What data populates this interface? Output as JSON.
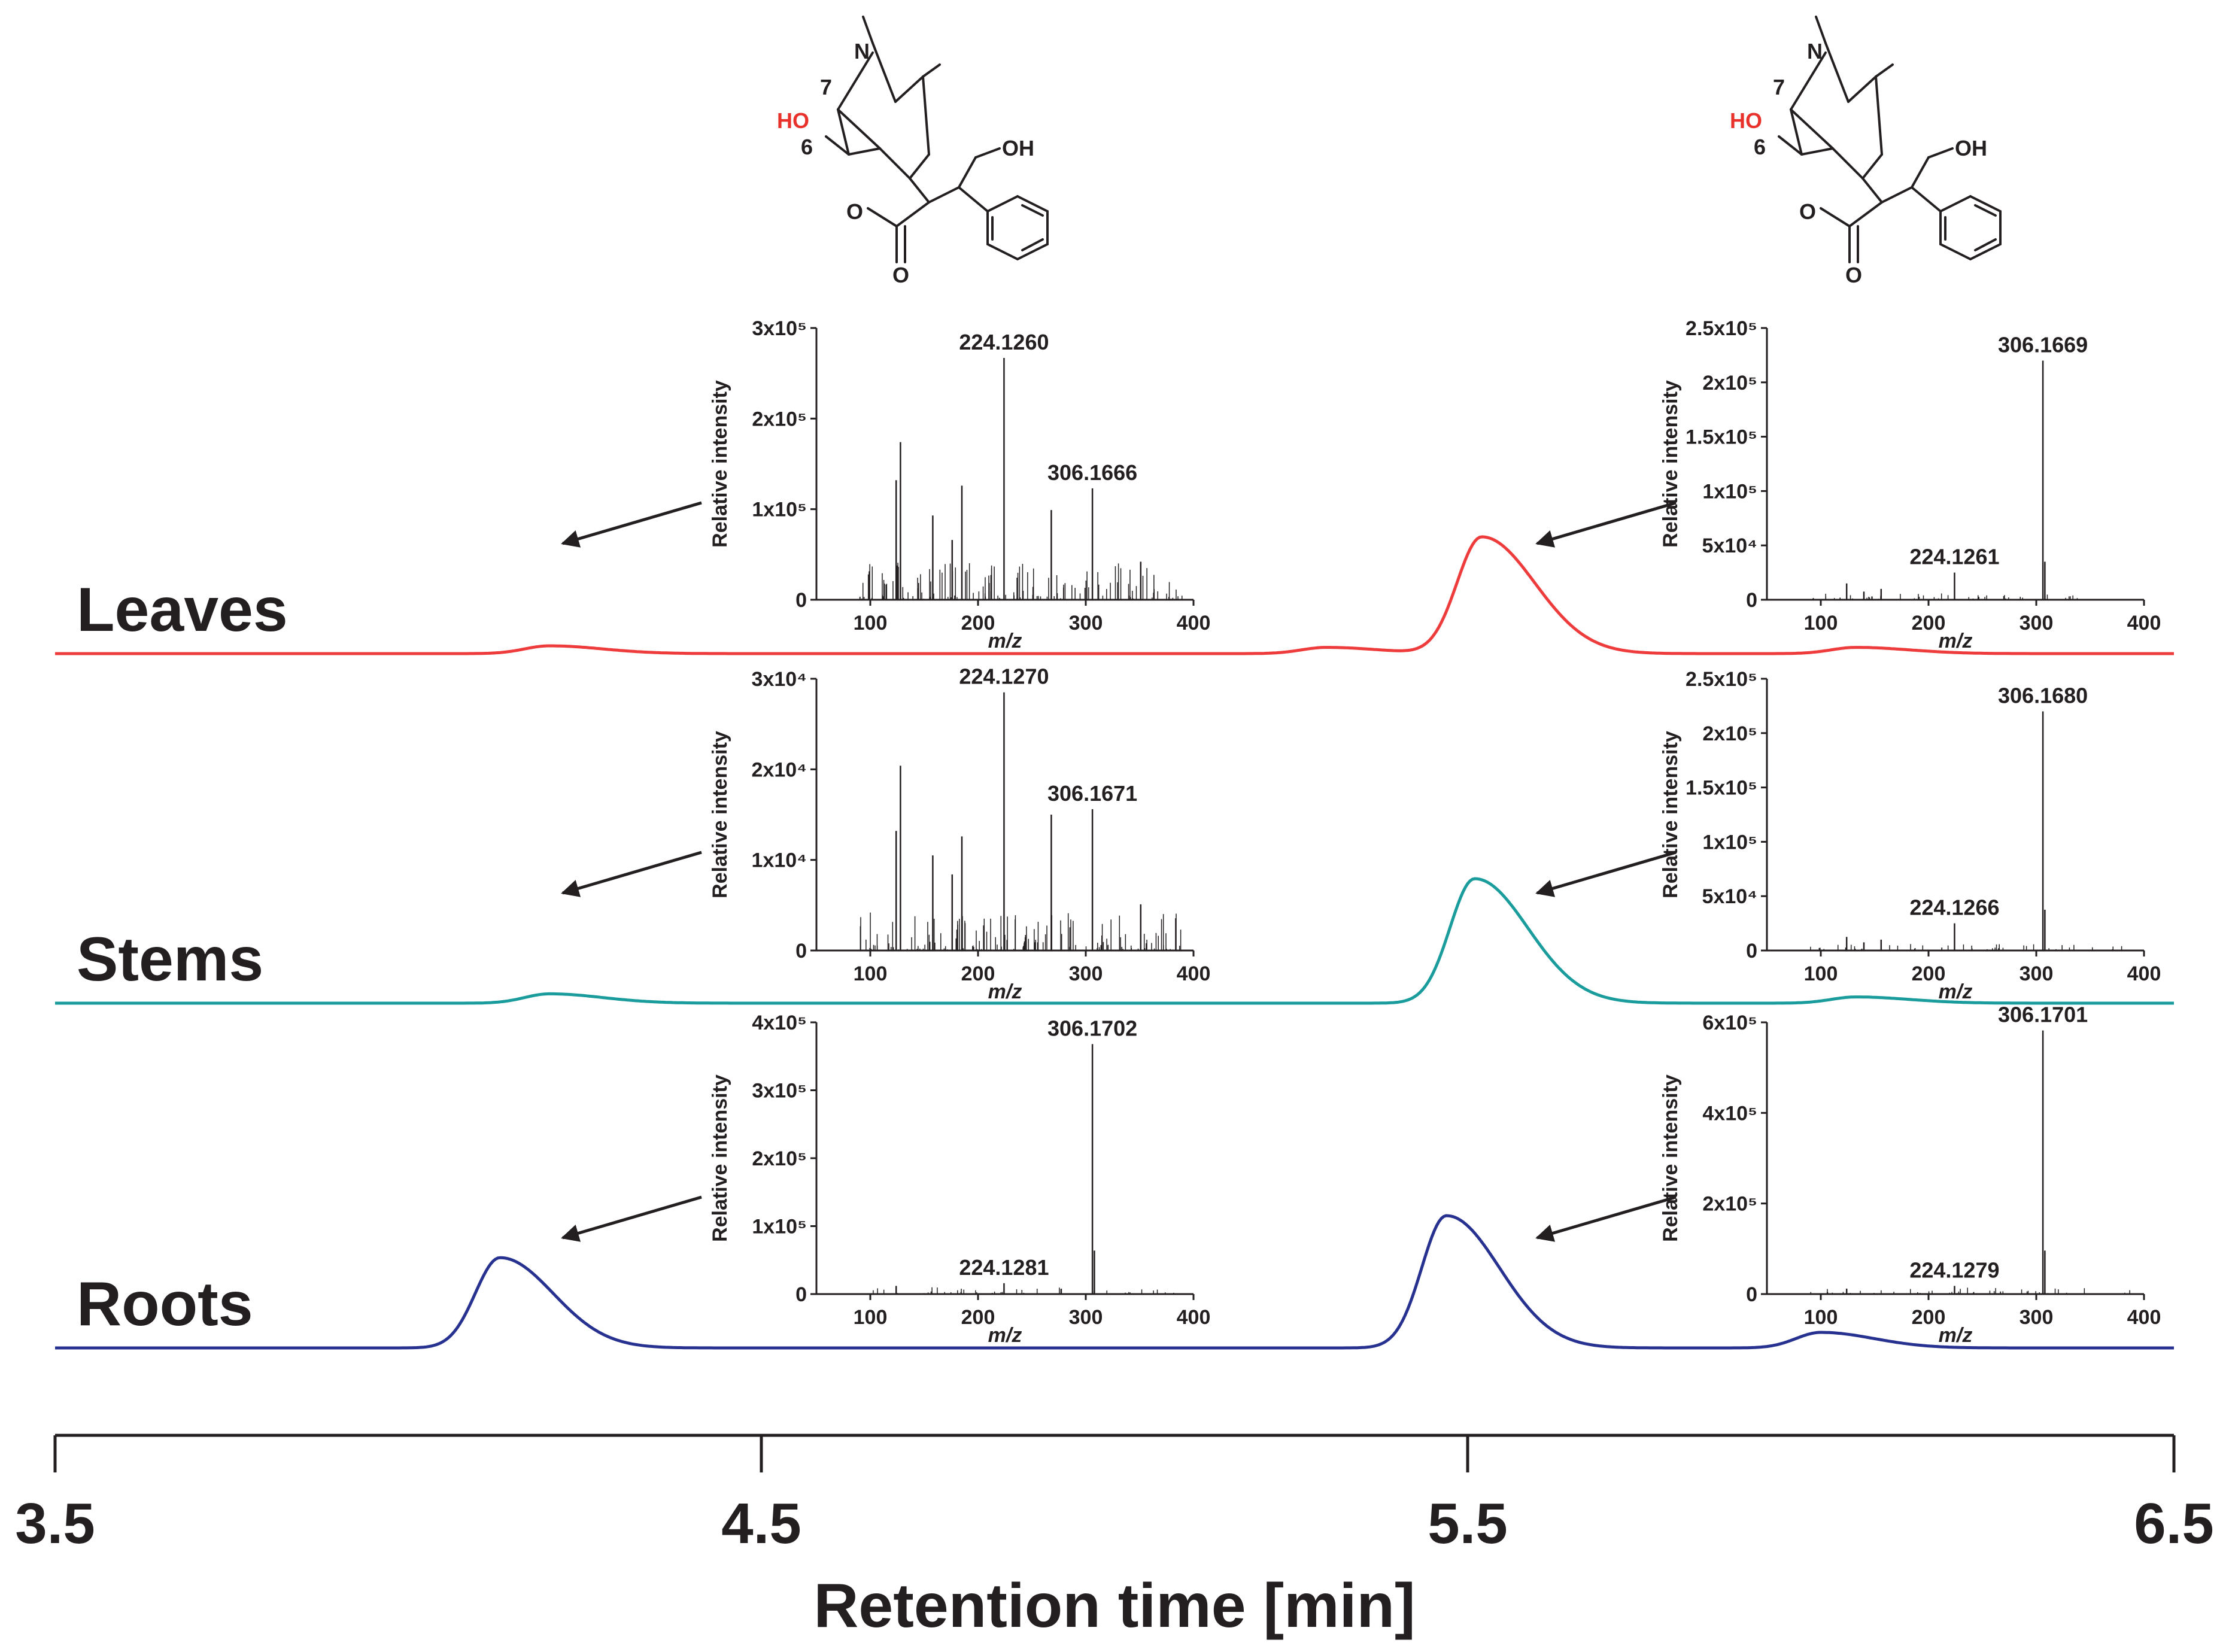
{
  "chart_data": {
    "type": "line",
    "title": "",
    "xlabel": "Retention time [min]",
    "xlim": [
      3.5,
      6.5
    ],
    "x_ticks": [
      "3.5",
      "4.5",
      "5.5",
      "6.5"
    ],
    "colors": {
      "Leaves": "#ee3b3b",
      "Stems": "#1a9c9c",
      "Roots": "#27318f",
      "ink": "#231f20",
      "hetero": "#e8312b"
    },
    "series": [
      {
        "name": "Leaves",
        "baseline_only": false,
        "peaks": [
          {
            "rt": 5.52,
            "height": 0.75
          },
          {
            "rt": 4.2,
            "height": 0.05
          },
          {
            "rt": 5.3,
            "height": 0.04
          },
          {
            "rt": 6.05,
            "height": 0.04
          }
        ]
      },
      {
        "name": "Stems",
        "peaks": [
          {
            "rt": 5.51,
            "height": 0.8
          },
          {
            "rt": 4.2,
            "height": 0.06
          },
          {
            "rt": 6.05,
            "height": 0.04
          }
        ]
      },
      {
        "name": "Roots",
        "peaks": [
          {
            "rt": 4.13,
            "height": 0.58
          },
          {
            "rt": 5.47,
            "height": 0.85
          },
          {
            "rt": 6.0,
            "height": 0.1
          }
        ]
      }
    ],
    "structure": {
      "labels": [
        "N",
        "7",
        "6",
        "HO",
        "OH",
        "O",
        "O"
      ]
    },
    "ms_spectra": [
      {
        "sample": "Leaves",
        "peak": "left",
        "ylabel": "Relative intensity",
        "xlabel": "m/z",
        "y_ticks": [
          "0",
          "1x10⁵",
          "2x10⁵",
          "3x10⁵"
        ],
        "ymax": 3.0,
        "x_ticks": [
          "100",
          "200",
          "300",
          "400"
        ],
        "peaks": [
          {
            "mz": 224.126,
            "rel": 0.89,
            "label": "224.1260"
          },
          {
            "mz": 306.1666,
            "rel": 0.41,
            "label": "306.1666"
          },
          {
            "mz": 128,
            "rel": 0.58
          },
          {
            "mz": 124,
            "rel": 0.44
          },
          {
            "mz": 185,
            "rel": 0.42
          },
          {
            "mz": 158,
            "rel": 0.31
          },
          {
            "mz": 268,
            "rel": 0.33
          },
          {
            "mz": 351,
            "rel": 0.14
          },
          {
            "mz": 176,
            "rel": 0.22
          }
        ]
      },
      {
        "sample": "Leaves",
        "peak": "right",
        "ylabel": "Relative intensity",
        "xlabel": "m/z",
        "y_ticks": [
          "0",
          "5x10⁴",
          "1x10⁵",
          "1.5x10⁵",
          "2x10⁵",
          "2.5x10⁵"
        ],
        "ymax": 2.5,
        "x_ticks": [
          "100",
          "200",
          "300",
          "400"
        ],
        "peaks": [
          {
            "mz": 306.1669,
            "rel": 0.88,
            "label": "306.1669"
          },
          {
            "mz": 224.1261,
            "rel": 0.1,
            "label": "224.1261"
          },
          {
            "mz": 124,
            "rel": 0.06
          },
          {
            "mz": 156,
            "rel": 0.04
          },
          {
            "mz": 140,
            "rel": 0.03
          },
          {
            "mz": 308,
            "rel": 0.14
          }
        ]
      },
      {
        "sample": "Stems",
        "peak": "left",
        "ylabel": "Relative intensity",
        "xlabel": "m/z",
        "y_ticks": [
          "0",
          "1x10⁴",
          "2x10⁴",
          "3x10⁴"
        ],
        "ymax": 3.0,
        "x_ticks": [
          "100",
          "200",
          "300",
          "400"
        ],
        "peaks": [
          {
            "mz": 224.127,
            "rel": 0.95,
            "label": "224.1270"
          },
          {
            "mz": 306.1671,
            "rel": 0.52,
            "label": "306.1671"
          },
          {
            "mz": 128,
            "rel": 0.68
          },
          {
            "mz": 124,
            "rel": 0.44
          },
          {
            "mz": 185,
            "rel": 0.42
          },
          {
            "mz": 158,
            "rel": 0.35
          },
          {
            "mz": 268,
            "rel": 0.5
          },
          {
            "mz": 351,
            "rel": 0.17
          },
          {
            "mz": 176,
            "rel": 0.28
          }
        ]
      },
      {
        "sample": "Stems",
        "peak": "right",
        "ylabel": "Relative intensity",
        "xlabel": "m/z",
        "y_ticks": [
          "0",
          "5x10⁴",
          "1x10⁵",
          "1.5x10⁵",
          "2x10⁵",
          "2.5x10⁵"
        ],
        "ymax": 2.5,
        "x_ticks": [
          "100",
          "200",
          "300",
          "400"
        ],
        "peaks": [
          {
            "mz": 306.168,
            "rel": 0.88,
            "label": "306.1680"
          },
          {
            "mz": 224.1266,
            "rel": 0.1,
            "label": "224.1266"
          },
          {
            "mz": 124,
            "rel": 0.05
          },
          {
            "mz": 156,
            "rel": 0.04
          },
          {
            "mz": 140,
            "rel": 0.03
          },
          {
            "mz": 308,
            "rel": 0.15
          }
        ]
      },
      {
        "sample": "Roots",
        "peak": "left",
        "ylabel": "Relative intensity",
        "xlabel": "m/z",
        "y_ticks": [
          "0",
          "1x10⁵",
          "2x10⁵",
          "3x10⁵",
          "4x10⁵"
        ],
        "ymax": 4.0,
        "x_ticks": [
          "100",
          "200",
          "300",
          "400"
        ],
        "peaks": [
          {
            "mz": 306.1702,
            "rel": 0.92,
            "label": "306.1702"
          },
          {
            "mz": 224.1281,
            "rel": 0.04,
            "label": "224.1281"
          },
          {
            "mz": 124,
            "rel": 0.03
          },
          {
            "mz": 308,
            "rel": 0.16
          }
        ]
      },
      {
        "sample": "Roots",
        "peak": "right",
        "ylabel": "Relative intensity",
        "xlabel": "m/z",
        "y_ticks": [
          "0",
          "2x10⁵",
          "4x10⁵",
          "6x10⁵"
        ],
        "ymax": 6.0,
        "x_ticks": [
          "100",
          "200",
          "300",
          "400"
        ],
        "peaks": [
          {
            "mz": 306.1701,
            "rel": 0.97,
            "label": "306.1701"
          },
          {
            "mz": 224.1279,
            "rel": 0.03,
            "label": "224.1279"
          },
          {
            "mz": 124,
            "rel": 0.02
          },
          {
            "mz": 308,
            "rel": 0.16
          }
        ]
      }
    ]
  }
}
